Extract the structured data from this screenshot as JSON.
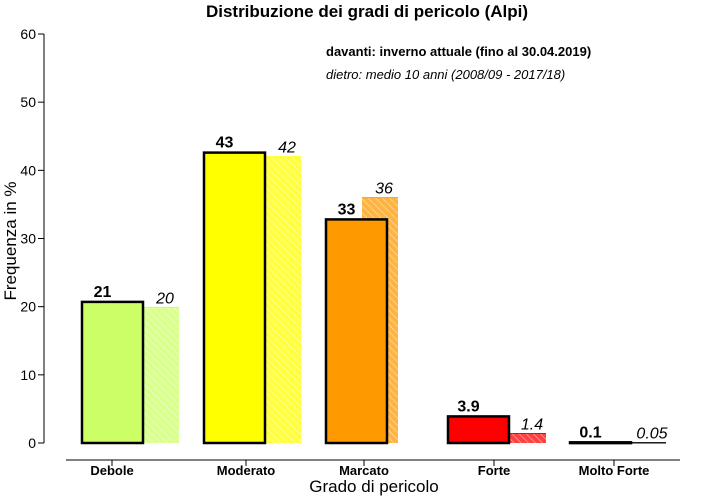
{
  "chart_data": {
    "type": "bar",
    "title": "Distribuzione dei gradi di pericolo (Alpi)",
    "xlabel": "Grado di pericolo",
    "ylabel": "Frequenza in %",
    "ylim": [
      0,
      60
    ],
    "yticks": [
      0,
      10,
      20,
      30,
      40,
      50,
      60
    ],
    "legend": {
      "front": "davanti: inverno attuale (fino al 30.04.2019)",
      "back": "dietro: medio 10 anni (2008/09 - 2017/18)",
      "placement": "top-right"
    },
    "categories": [
      "Debole",
      "Moderato",
      "Marcato",
      "Forte",
      "Molto Forte"
    ],
    "colors": [
      "#ccff66",
      "#ffff00",
      "#ff9900",
      "#ff0000",
      "#000000"
    ],
    "series": [
      {
        "name": "davanti: inverno attuale (fino al 30.04.2019)",
        "values": [
          20.7,
          42.6,
          32.8,
          3.9,
          0.1
        ],
        "labels": [
          "21",
          "43",
          "33",
          "3.9",
          "0.1"
        ]
      },
      {
        "name": "dietro: medio 10 anni (2008/09 - 2017/18)",
        "values": [
          19.9,
          42.0,
          36.0,
          1.4,
          0.05
        ],
        "labels": [
          "20",
          "42",
          "36",
          "1.4",
          "0.05"
        ]
      }
    ]
  }
}
